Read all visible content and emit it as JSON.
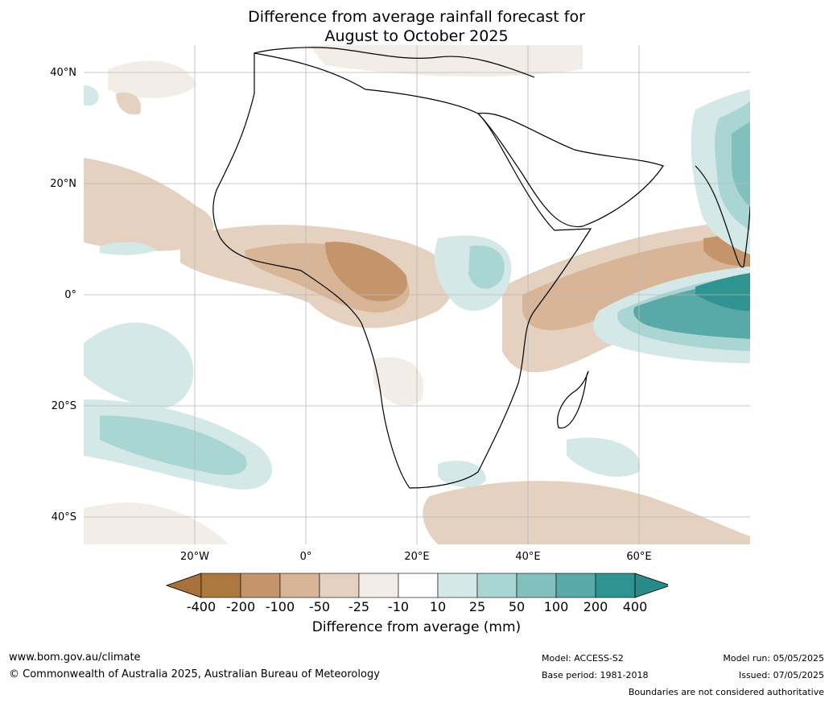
{
  "title_line1": "Difference from average rainfall forecast for",
  "title_line2": "August to October 2025",
  "lat_labels": [
    "40°N",
    "20°N",
    "0°",
    "20°S",
    "40°S"
  ],
  "lon_labels": [
    "20°W",
    "0°",
    "20°E",
    "40°E",
    "60°E"
  ],
  "legend": {
    "title": "Difference from average (mm)",
    "ticks": [
      "-400",
      "-200",
      "-100",
      "-50",
      "-25",
      "-10",
      "10",
      "25",
      "50",
      "100",
      "200",
      "400"
    ],
    "colors": [
      "#a6713b",
      "#ad783f",
      "#c4956a",
      "#d7b596",
      "#e4d1c0",
      "#f2ede6",
      "#ffffff",
      "#d4e9e7",
      "#a9d5d3",
      "#82c0be",
      "#59a9a8",
      "#2f9391",
      "#2a8a88"
    ]
  },
  "footer": {
    "url": "www.bom.gov.au/climate",
    "copyright": "© Commonwealth of Australia 2025, Australian Bureau of Meteorology",
    "model": "Model: ACCESS-S2",
    "base_period": "Base period: 1981-2018",
    "model_run": "Model run: 05/05/2025",
    "issued": "Issued: 07/05/2025",
    "disclaimer": "Boundaries are not considered authoritative"
  }
}
